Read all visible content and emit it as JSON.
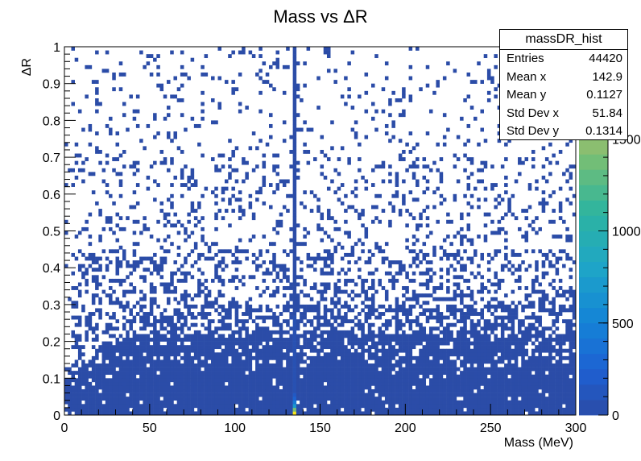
{
  "chart_data": {
    "type": "heatmap",
    "title": "Mass vs ΔR",
    "xlabel": "Mass (MeV)",
    "ylabel": "ΔR",
    "xlim": [
      0,
      300
    ],
    "ylim": [
      0,
      1
    ],
    "x_ticks": [
      "0",
      "50",
      "100",
      "150",
      "200",
      "250",
      "300"
    ],
    "y_ticks": [
      "0",
      "0.1",
      "0.2",
      "0.3",
      "0.4",
      "0.5",
      "0.6",
      "0.7",
      "0.8",
      "0.9",
      "1"
    ],
    "colorbar_ticks": [
      "0",
      "500",
      "1000",
      "1500"
    ],
    "colorbar_range": [
      0,
      2000
    ],
    "bins": {
      "x": 150,
      "y": 100
    },
    "peak": {
      "mass": 135,
      "max_count": 2000
    },
    "colors": {
      "low": "#2a4ba6",
      "mid": "#29b0b8",
      "high": "#f6e51c"
    }
  },
  "stats": {
    "name": "massDR_hist",
    "rows": [
      {
        "label": "Entries",
        "value": "44420"
      },
      {
        "label": "Mean x",
        "value": "142.9"
      },
      {
        "label": "Mean y",
        "value": "0.1127"
      },
      {
        "label": "Std Dev x",
        "value": "51.84"
      },
      {
        "label": "Std Dev y",
        "value": "0.1314"
      }
    ]
  }
}
